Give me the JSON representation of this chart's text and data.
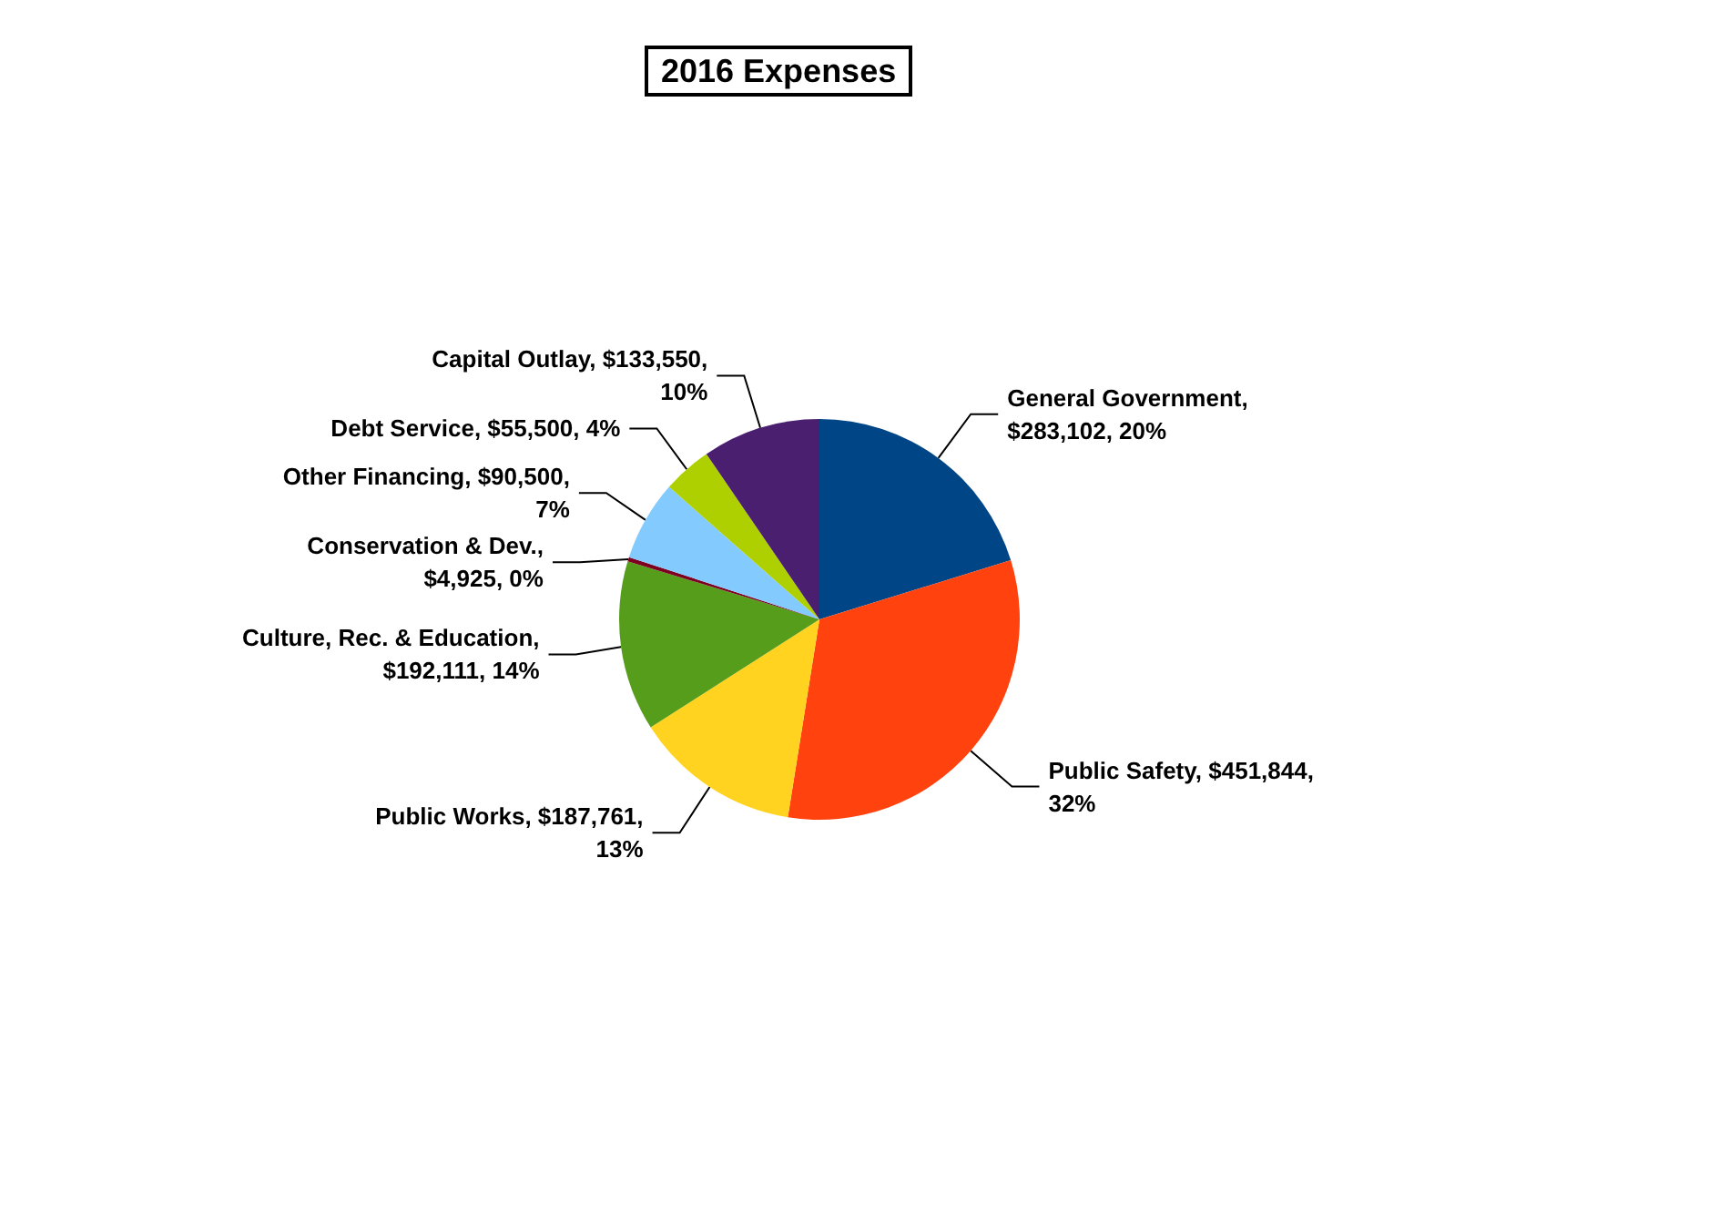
{
  "chart_data": {
    "type": "pie",
    "title": "2016 Expenses",
    "categories": [
      "General Government",
      "Public Safety",
      "Public Works",
      "Culture, Rec. & Education",
      "Conservation & Dev.",
      "Other Financing",
      "Debt Service",
      "Capital Outlay"
    ],
    "values": [
      283102,
      451844,
      187761,
      192111,
      4925,
      90500,
      55500,
      133550
    ],
    "colors": [
      "#004586",
      "#ff420e",
      "#ffd320",
      "#579d1c",
      "#7e0021",
      "#83caff",
      "#aecf00",
      "#4b1f6f"
    ],
    "value_labels": [
      ", $283,102, 20%",
      ", $451,844, 32%",
      ", $187,761, 13%",
      ", $192,111, 14%",
      ", $4,925, 0%",
      ", $90,500, 7%",
      ", $55,500, 4%",
      ", $133,550, 10%"
    ],
    "legend": false
  }
}
